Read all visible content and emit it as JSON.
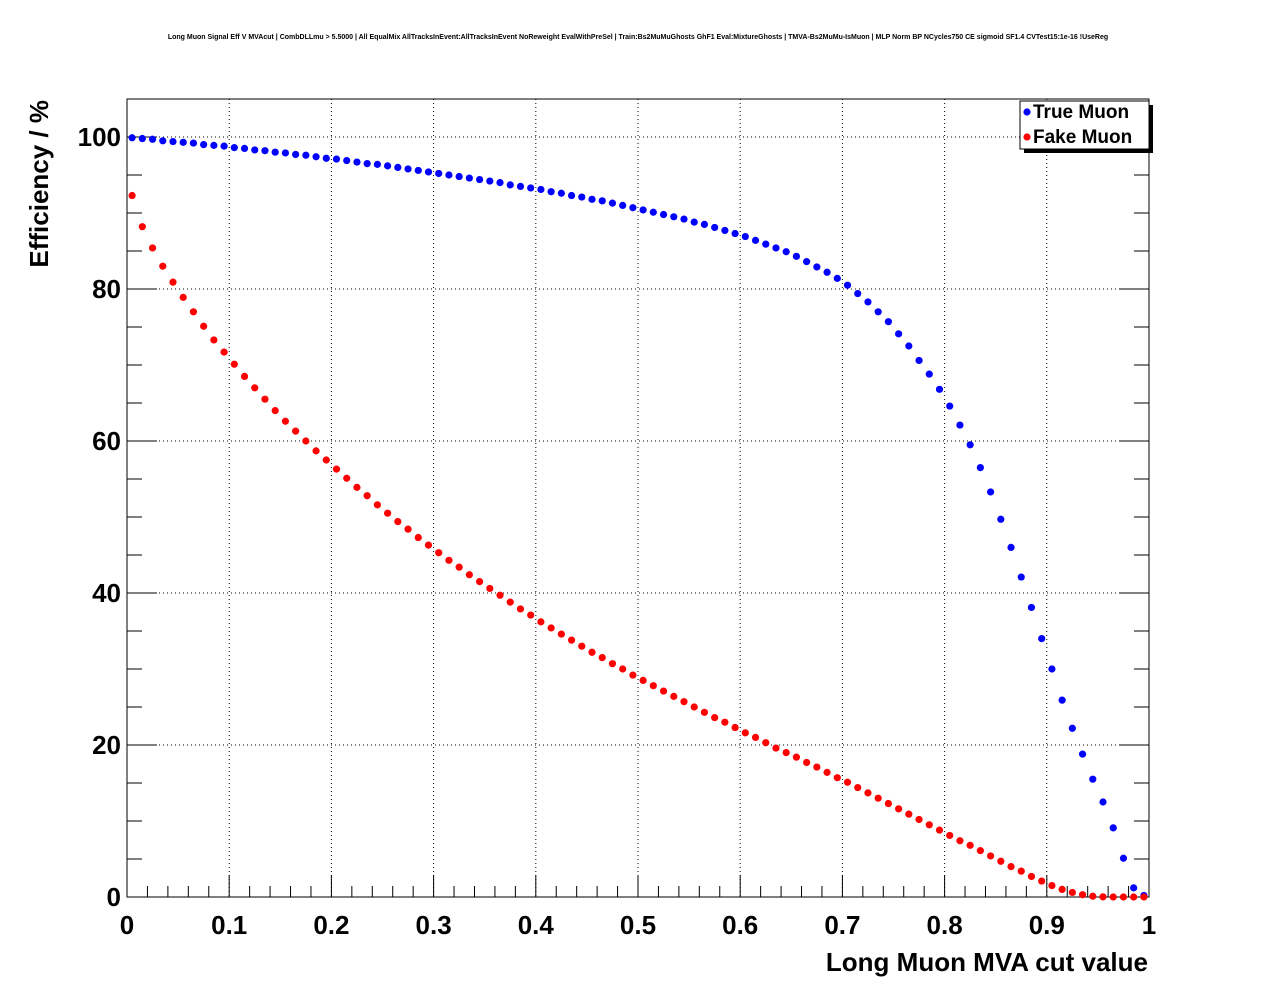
{
  "chart_data": {
    "type": "scatter",
    "title": "Long Muon Signal Eff V MVAcut | CombDLLmu > 5.5000 | All EqualMix AllTracksInEvent:AllTracksInEvent NoReweight EvalWithPreSel | Train:Bs2MuMuGhosts GhF1 Eval:MixtureGhosts | TMVA-Bs2MuMu-IsMuon | MLP Norm BP NCycles750 CE sigmoid SF1.4 CVTest15:1e-16 !UseReg",
    "xlabel": "Long Muon MVA cut value",
    "ylabel": "Efficiency / %",
    "xlim": [
      0,
      1
    ],
    "ylim": [
      0,
      105
    ],
    "xticks": [
      "0",
      "0.1",
      "0.2",
      "0.3",
      "0.4",
      "0.5",
      "0.6",
      "0.7",
      "0.8",
      "0.9",
      "1"
    ],
    "yticks": [
      "0",
      "20",
      "40",
      "60",
      "80",
      "100"
    ],
    "grid": true,
    "legend_position": "top-right",
    "series": [
      {
        "name": "True Muon",
        "color": "#0000ff",
        "x": [
          0.005,
          0.015,
          0.025,
          0.035,
          0.045,
          0.055,
          0.065,
          0.075,
          0.085,
          0.095,
          0.105,
          0.115,
          0.125,
          0.135,
          0.145,
          0.155,
          0.165,
          0.175,
          0.185,
          0.195,
          0.205,
          0.215,
          0.225,
          0.235,
          0.245,
          0.255,
          0.265,
          0.275,
          0.285,
          0.295,
          0.305,
          0.315,
          0.325,
          0.335,
          0.345,
          0.355,
          0.365,
          0.375,
          0.385,
          0.395,
          0.405,
          0.415,
          0.425,
          0.435,
          0.445,
          0.455,
          0.465,
          0.475,
          0.485,
          0.495,
          0.505,
          0.515,
          0.525,
          0.535,
          0.545,
          0.555,
          0.565,
          0.575,
          0.585,
          0.595,
          0.605,
          0.615,
          0.625,
          0.635,
          0.645,
          0.655,
          0.665,
          0.675,
          0.685,
          0.695,
          0.705,
          0.715,
          0.725,
          0.735,
          0.745,
          0.755,
          0.765,
          0.775,
          0.785,
          0.795,
          0.805,
          0.815,
          0.825,
          0.835,
          0.845,
          0.855,
          0.865,
          0.875,
          0.885,
          0.895,
          0.905,
          0.915,
          0.925,
          0.935,
          0.945,
          0.955,
          0.965,
          0.975,
          0.985,
          0.995
        ],
        "y": [
          99.9,
          99.8,
          99.7,
          99.5,
          99.4,
          99.3,
          99.2,
          99.0,
          98.9,
          98.8,
          98.6,
          98.5,
          98.3,
          98.2,
          98.0,
          97.9,
          97.7,
          97.6,
          97.4,
          97.2,
          97.1,
          96.9,
          96.7,
          96.5,
          96.4,
          96.2,
          96.0,
          95.8,
          95.6,
          95.4,
          95.2,
          95.0,
          94.8,
          94.6,
          94.4,
          94.2,
          94.0,
          93.7,
          93.5,
          93.3,
          93.1,
          92.8,
          92.6,
          92.3,
          92.1,
          91.8,
          91.6,
          91.3,
          91.0,
          90.7,
          90.4,
          90.1,
          89.8,
          89.5,
          89.2,
          88.8,
          88.5,
          88.1,
          87.7,
          87.3,
          86.9,
          86.4,
          85.9,
          85.4,
          84.9,
          84.3,
          83.6,
          82.9,
          82.2,
          81.4,
          80.5,
          79.4,
          78.3,
          77.0,
          75.7,
          74.1,
          72.5,
          70.6,
          68.8,
          66.8,
          64.6,
          62.1,
          59.5,
          56.5,
          53.3,
          49.7,
          46.0,
          42.1,
          38.1,
          34.0,
          30.0,
          25.9,
          22.2,
          18.8,
          15.5,
          12.5,
          9.1,
          5.1,
          1.2,
          0.2
        ]
      },
      {
        "name": "Fake Muon",
        "color": "#ff0000",
        "x": [
          0.005,
          0.015,
          0.025,
          0.035,
          0.045,
          0.055,
          0.065,
          0.075,
          0.085,
          0.095,
          0.105,
          0.115,
          0.125,
          0.135,
          0.145,
          0.155,
          0.165,
          0.175,
          0.185,
          0.195,
          0.205,
          0.215,
          0.225,
          0.235,
          0.245,
          0.255,
          0.265,
          0.275,
          0.285,
          0.295,
          0.305,
          0.315,
          0.325,
          0.335,
          0.345,
          0.355,
          0.365,
          0.375,
          0.385,
          0.395,
          0.405,
          0.415,
          0.425,
          0.435,
          0.445,
          0.455,
          0.465,
          0.475,
          0.485,
          0.495,
          0.505,
          0.515,
          0.525,
          0.535,
          0.545,
          0.555,
          0.565,
          0.575,
          0.585,
          0.595,
          0.605,
          0.615,
          0.625,
          0.635,
          0.645,
          0.655,
          0.665,
          0.675,
          0.685,
          0.695,
          0.705,
          0.715,
          0.725,
          0.735,
          0.745,
          0.755,
          0.765,
          0.775,
          0.785,
          0.795,
          0.805,
          0.815,
          0.825,
          0.835,
          0.845,
          0.855,
          0.865,
          0.875,
          0.885,
          0.895,
          0.905,
          0.915,
          0.925,
          0.935,
          0.945,
          0.955,
          0.965,
          0.975,
          0.985,
          0.995
        ],
        "y": [
          92.3,
          88.2,
          85.4,
          83.0,
          80.9,
          78.9,
          77.0,
          75.1,
          73.3,
          71.7,
          70.1,
          68.5,
          67.0,
          65.5,
          64.0,
          62.6,
          61.3,
          60.0,
          58.7,
          57.5,
          56.3,
          55.1,
          53.9,
          52.8,
          51.6,
          50.5,
          49.4,
          48.4,
          47.3,
          46.3,
          45.3,
          44.3,
          43.4,
          42.4,
          41.5,
          40.6,
          39.7,
          38.8,
          37.9,
          37.1,
          36.2,
          35.4,
          34.6,
          33.8,
          33.0,
          32.2,
          31.5,
          30.7,
          30.0,
          29.2,
          28.5,
          27.8,
          27.1,
          26.4,
          25.7,
          25.0,
          24.3,
          23.6,
          23.0,
          22.3,
          21.6,
          21.0,
          20.3,
          19.6,
          19.0,
          18.4,
          17.7,
          17.1,
          16.4,
          15.7,
          15.1,
          14.4,
          13.7,
          13.0,
          12.3,
          11.6,
          10.9,
          10.2,
          9.5,
          8.8,
          8.1,
          7.4,
          6.8,
          6.1,
          5.4,
          4.7,
          4.0,
          3.4,
          2.7,
          2.1,
          1.5,
          1.0,
          0.6,
          0.3,
          0.1,
          0.02,
          0.0,
          0.0,
          0.0,
          0.0
        ]
      }
    ]
  }
}
